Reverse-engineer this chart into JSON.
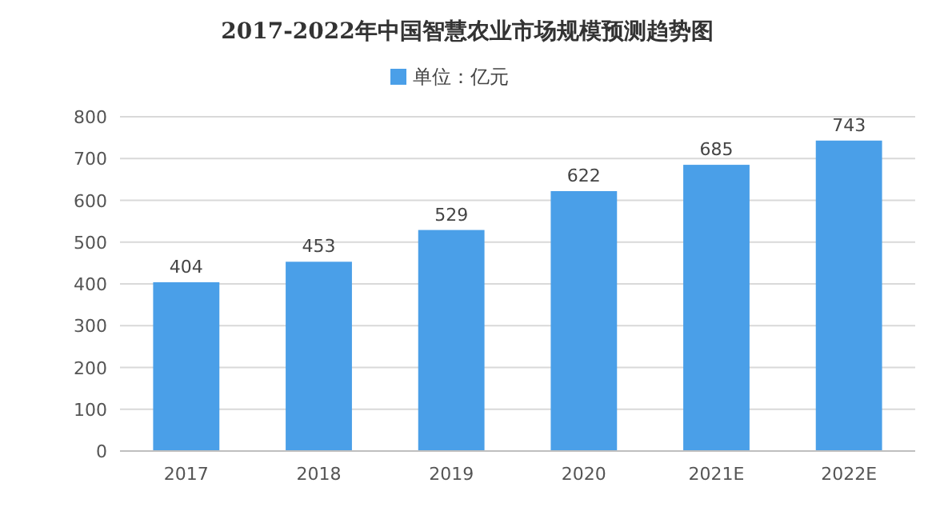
{
  "chart_data": {
    "type": "bar",
    "title": "2017-2022年中国智慧农业市场规模预测趋势图",
    "categories": [
      "2017",
      "2018",
      "2019",
      "2020",
      "2021E",
      "2022E"
    ],
    "series": [
      {
        "name": "单位：亿元",
        "color": "#4a9fe8",
        "values": [
          404,
          453,
          529,
          622,
          685,
          743
        ]
      }
    ],
    "ylim": [
      0,
      800
    ],
    "yticks": [
      0,
      100,
      200,
      300,
      400,
      500,
      600,
      700,
      800
    ],
    "grid": "y",
    "legend": "top",
    "data_labels": true
  }
}
